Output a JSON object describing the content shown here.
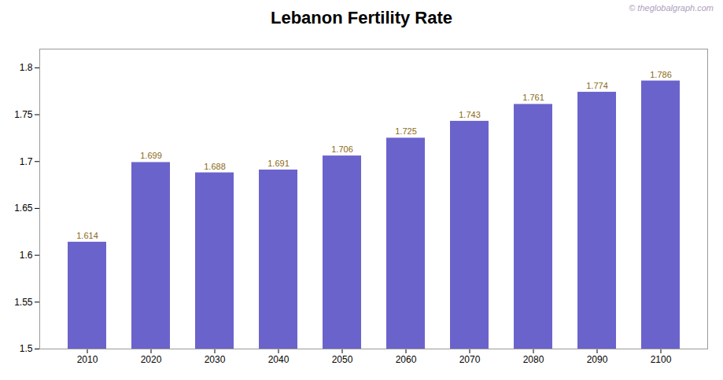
{
  "chart_data": {
    "type": "bar",
    "title": "Lebanon Fertility Rate",
    "categories": [
      "2010",
      "2020",
      "2030",
      "2040",
      "2050",
      "2060",
      "2070",
      "2080",
      "2090",
      "2100"
    ],
    "values": [
      1.614,
      1.699,
      1.688,
      1.691,
      1.706,
      1.725,
      1.743,
      1.761,
      1.774,
      1.786
    ],
    "color": "#6B63CC",
    "ylim": [
      1.5,
      1.82
    ],
    "yticks": [
      1.5,
      1.55,
      1.6,
      1.65,
      1.7,
      1.75,
      1.8
    ],
    "grid": false,
    "data_labels": true,
    "annotations": [
      "© theglobalgraph.com"
    ]
  }
}
